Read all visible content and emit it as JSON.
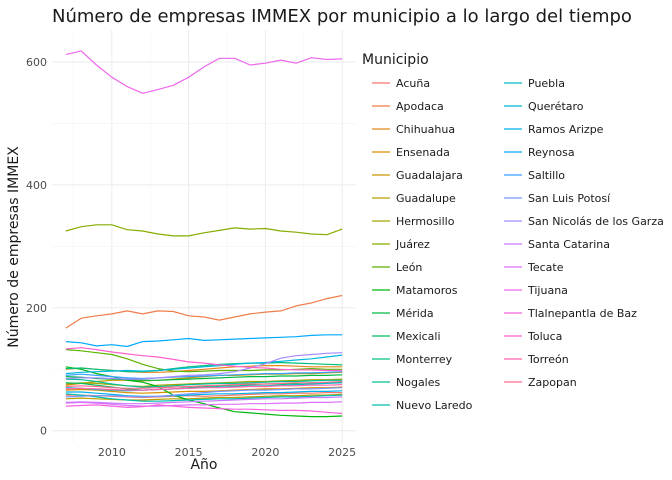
{
  "chart_data": {
    "type": "line",
    "title": "Número de empresas IMMEX por municipio a lo largo del tiempo",
    "xlabel": "Año",
    "ylabel": "Número de empresas IMMEX",
    "xlim": [
      2007,
      2025
    ],
    "ylim": [
      0,
      640
    ],
    "xticks": [
      2010,
      2015,
      2020,
      2025
    ],
    "yticks": [
      0,
      200,
      400,
      600
    ],
    "grid": true,
    "legend": {
      "title": "Municipio",
      "placement": "right",
      "columns": 2
    },
    "x": [
      2007,
      2008,
      2009,
      2010,
      2011,
      2012,
      2013,
      2014,
      2015,
      2016,
      2017,
      2018,
      2019,
      2020,
      2021,
      2022,
      2023,
      2024,
      2025
    ],
    "series": [
      {
        "name": "Acuña",
        "color": "#F8766D",
        "values": [
          58,
          58,
          57,
          56,
          55,
          54,
          55,
          56,
          57,
          56,
          57,
          58,
          59,
          60,
          60,
          61,
          61,
          62,
          62
        ]
      },
      {
        "name": "Apodaca",
        "color": "#F07E4B",
        "values": [
          167,
          183,
          187,
          190,
          195,
          190,
          195,
          194,
          187,
          185,
          180,
          185,
          190,
          193,
          195,
          203,
          208,
          215,
          220
        ]
      },
      {
        "name": "Chihuahua",
        "color": "#E6861D",
        "values": [
          100,
          102,
          100,
          98,
          96,
          95,
          95,
          96,
          98,
          100,
          102,
          104,
          105,
          106,
          106,
          105,
          104,
          104,
          104
        ]
      },
      {
        "name": "Ensenada",
        "color": "#D98F00",
        "values": [
          66,
          67,
          66,
          64,
          62,
          61,
          62,
          63,
          64,
          64,
          65,
          66,
          67,
          68,
          68,
          69,
          70,
          70,
          71
        ]
      },
      {
        "name": "Guadalajara",
        "color": "#CA9700",
        "values": [
          74,
          77,
          80,
          82,
          82,
          81,
          82,
          84,
          86,
          88,
          90,
          90,
          91,
          92,
          92,
          93,
          93,
          94,
          95
        ]
      },
      {
        "name": "Guadalupe",
        "color": "#B89E00",
        "values": [
          52,
          53,
          52,
          51,
          50,
          50,
          51,
          52,
          52,
          53,
          54,
          54,
          55,
          56,
          57,
          57,
          58,
          58,
          59
        ]
      },
      {
        "name": "Hermosillo",
        "color": "#A3A500",
        "values": [
          76,
          78,
          77,
          75,
          73,
          72,
          74,
          75,
          76,
          77,
          78,
          79,
          80,
          80,
          81,
          82,
          83,
          83,
          84
        ]
      },
      {
        "name": "Juárez",
        "color": "#86AC00",
        "values": [
          325,
          332,
          335,
          335,
          327,
          325,
          320,
          317,
          317,
          322,
          326,
          330,
          328,
          329,
          325,
          323,
          320,
          319,
          328
        ]
      },
      {
        "name": "León",
        "color": "#5CB200",
        "values": [
          132,
          130,
          127,
          124,
          117,
          108,
          101,
          97,
          96,
          97,
          98,
          98,
          98,
          99,
          99,
          100,
          101,
          100,
          100
        ]
      },
      {
        "name": "Matamoros",
        "color": "#00B70C",
        "values": [
          104,
          100,
          93,
          88,
          82,
          79,
          72,
          58,
          50,
          44,
          37,
          31,
          29,
          27,
          25,
          24,
          23,
          23,
          24
        ]
      },
      {
        "name": "Mérida",
        "color": "#00BA42",
        "values": [
          88,
          87,
          85,
          84,
          83,
          82,
          82,
          83,
          84,
          85,
          86,
          87,
          88,
          88,
          89,
          89,
          90,
          90,
          91
        ]
      },
      {
        "name": "Mexicali",
        "color": "#00BD62",
        "values": [
          78,
          77,
          74,
          71,
          68,
          66,
          67,
          68,
          70,
          72,
          73,
          74,
          75,
          76,
          76,
          77,
          78,
          78,
          79
        ]
      },
      {
        "name": "Monterrey",
        "color": "#00BF7D",
        "values": [
          101,
          102,
          100,
          98,
          96,
          96,
          98,
          101,
          104,
          106,
          108,
          109,
          110,
          110,
          111,
          110,
          109,
          108,
          107
        ]
      },
      {
        "name": "Nogales",
        "color": "#00C097",
        "values": [
          84,
          83,
          80,
          76,
          73,
          71,
          72,
          73,
          75,
          76,
          77,
          77,
          78,
          79,
          80,
          80,
          81,
          82,
          82
        ]
      },
      {
        "name": "Nuevo Laredo",
        "color": "#00C0AF",
        "values": [
          60,
          58,
          55,
          52,
          50,
          48,
          48,
          49,
          50,
          51,
          52,
          52,
          53,
          54,
          55,
          55,
          56,
          57,
          58
        ]
      },
      {
        "name": "Puebla",
        "color": "#00BCC6",
        "values": [
          70,
          69,
          67,
          66,
          65,
          66,
          67,
          68,
          69,
          70,
          71,
          72,
          73,
          73,
          74,
          75,
          76,
          77,
          78
        ]
      },
      {
        "name": "Querétaro",
        "color": "#00B8DB",
        "values": [
          93,
          95,
          96,
          97,
          98,
          97,
          98,
          100,
          102,
          104,
          106,
          108,
          110,
          111,
          113,
          115,
          117,
          120,
          123
        ]
      },
      {
        "name": "Ramos Arizpe",
        "color": "#00B1EB",
        "values": [
          63,
          63,
          61,
          59,
          57,
          56,
          56,
          57,
          58,
          59,
          60,
          60,
          61,
          62,
          62,
          63,
          64,
          64,
          65
        ]
      },
      {
        "name": "Reynosa",
        "color": "#00A9FF",
        "values": [
          145,
          143,
          138,
          140,
          137,
          145,
          146,
          148,
          150,
          147,
          148,
          149,
          150,
          151,
          152,
          153,
          155,
          156,
          156
        ]
      },
      {
        "name": "Saltillo",
        "color": "#35A2FF",
        "values": [
          90,
          92,
          90,
          88,
          86,
          85,
          86,
          87,
          88,
          89,
          90,
          91,
          92,
          93,
          93,
          94,
          94,
          95,
          96
        ]
      },
      {
        "name": "San Luis Potosí",
        "color": "#7C96FF",
        "values": [
          55,
          56,
          57,
          57,
          56,
          55,
          56,
          58,
          60,
          62,
          64,
          65,
          66,
          66,
          67,
          68,
          68,
          69,
          70
        ]
      },
      {
        "name": "San Nicolás de los Garza",
        "color": "#A58AFF",
        "values": [
          85,
          86,
          86,
          85,
          84,
          84,
          86,
          88,
          90,
          91,
          93,
          96,
          102,
          109,
          118,
          122,
          124,
          126,
          127
        ]
      },
      {
        "name": "Santa Catarina",
        "color": "#C77CFF",
        "values": [
          46,
          47,
          46,
          45,
          44,
          44,
          45,
          46,
          47,
          48,
          49,
          50,
          51,
          52,
          52,
          53,
          54,
          54,
          55
        ]
      },
      {
        "name": "Tecate",
        "color": "#DC71FA",
        "values": [
          45,
          46,
          45,
          43,
          41,
          40,
          40,
          41,
          42,
          42,
          43,
          43,
          44,
          44,
          45,
          45,
          46,
          46,
          47
        ]
      },
      {
        "name": "Tijuana",
        "color": "#ED68ED",
        "values": [
          612,
          618,
          595,
          575,
          560,
          549,
          555,
          562,
          575,
          592,
          606,
          606,
          595,
          598,
          603,
          598,
          607,
          604,
          605
        ]
      },
      {
        "name": "Tlalnepantla de Baz",
        "color": "#F863DF",
        "values": [
          40,
          41,
          42,
          40,
          38,
          39,
          42,
          40,
          38,
          37,
          36,
          35,
          35,
          34,
          33,
          33,
          32,
          30,
          28
        ]
      },
      {
        "name": "Toluca",
        "color": "#FF61CC",
        "values": [
          133,
          135,
          132,
          128,
          125,
          122,
          120,
          116,
          112,
          110,
          107,
          105,
          103,
          102,
          100,
          99,
          99,
          98,
          98
        ]
      },
      {
        "name": "Torreón",
        "color": "#FF65AE",
        "values": [
          68,
          69,
          68,
          67,
          66,
          66,
          67,
          68,
          69,
          70,
          70,
          71,
          72,
          72,
          73,
          73,
          74,
          74,
          75
        ]
      },
      {
        "name": "Zapopan",
        "color": "#FF6C91",
        "values": [
          72,
          73,
          72,
          70,
          69,
          69,
          70,
          71,
          72,
          73,
          74,
          75,
          76,
          76,
          77,
          78,
          78,
          79,
          80
        ]
      }
    ]
  }
}
